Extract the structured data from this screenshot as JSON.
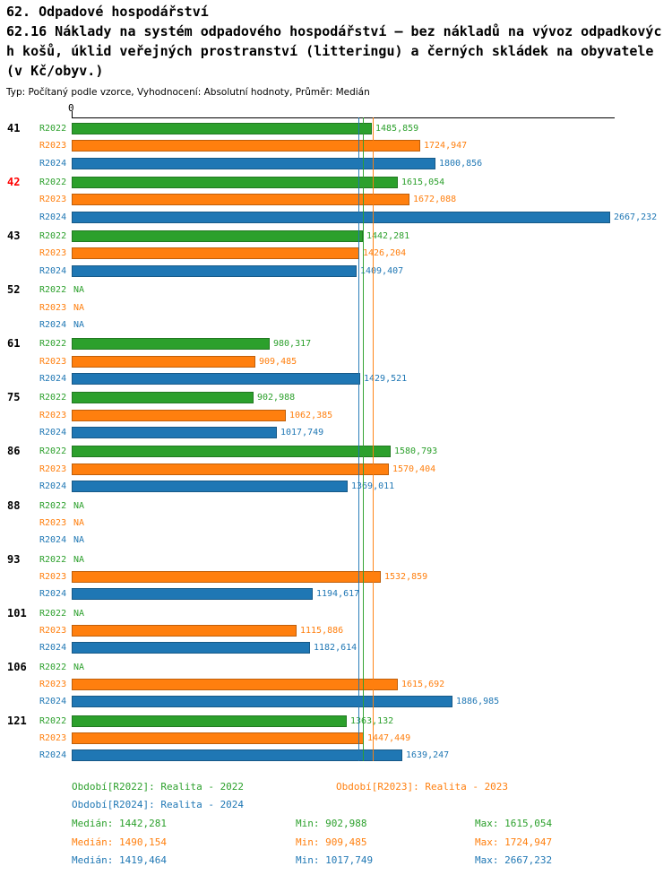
{
  "header": {
    "title_lines": [
      "62. Odpadové hospodářství",
      "62.16 Náklady na systém odpadového hospodářství – bez nákladů na vývoz odpadkovýc",
      "h košů, úklid veřejných prostranství (litteringu) a černých skládek na obyvatele",
      "(v Kč/obyv.)"
    ],
    "meta": "Typ: Počítaný podle vzorce, Vyhodnocení: Absolutní hodnoty, Průměr: Medián"
  },
  "colors": {
    "series": [
      "#2ca02c",
      "#ff7f0e",
      "#1f77b4"
    ],
    "highlight_row_id": "#ff0000",
    "default_row_id": "#000000",
    "axis": "#000000"
  },
  "chart_data": {
    "type": "bar",
    "orientation": "horizontal",
    "title": "62.16 Náklady na systém odpadového hospodářství – bez nákladů na vývoz odpadkových košů, úklid veřejných prostranství (litteringu) a černých skládek na obyvatele (v Kč/obyv.)",
    "xlabel": "",
    "ylabel": "",
    "xlim": [
      0,
      2690
    ],
    "axis_zero_label": "0",
    "grid": false,
    "legend_position": "bottom",
    "series_labels": [
      "R2022",
      "R2023",
      "R2024"
    ],
    "na_label": "NA",
    "groups": [
      {
        "id": "41",
        "highlight": false,
        "values": [
          1485.859,
          1724.947,
          1800.856
        ],
        "value_labels": [
          "1485,859",
          "1724,947",
          "1800,856"
        ]
      },
      {
        "id": "42",
        "highlight": true,
        "values": [
          1615.054,
          1672.088,
          2667.232
        ],
        "value_labels": [
          "1615,054",
          "1672,088",
          "2667,232"
        ]
      },
      {
        "id": "43",
        "highlight": false,
        "values": [
          1442.281,
          1426.204,
          1409.407
        ],
        "value_labels": [
          "1442,281",
          "1426,204",
          "1409,407"
        ]
      },
      {
        "id": "52",
        "highlight": false,
        "values": [
          null,
          null,
          null
        ],
        "value_labels": [
          "NA",
          "NA",
          "NA"
        ]
      },
      {
        "id": "61",
        "highlight": false,
        "values": [
          980.317,
          909.485,
          1429.521
        ],
        "value_labels": [
          "980,317",
          "909,485",
          "1429,521"
        ]
      },
      {
        "id": "75",
        "highlight": false,
        "values": [
          902.988,
          1062.385,
          1017.749
        ],
        "value_labels": [
          "902,988",
          "1062,385",
          "1017,749"
        ]
      },
      {
        "id": "86",
        "highlight": false,
        "values": [
          1580.793,
          1570.404,
          1369.011
        ],
        "value_labels": [
          "1580,793",
          "1570,404",
          "1369,011"
        ]
      },
      {
        "id": "88",
        "highlight": false,
        "values": [
          null,
          null,
          null
        ],
        "value_labels": [
          "NA",
          "NA",
          "NA"
        ]
      },
      {
        "id": "93",
        "highlight": false,
        "values": [
          null,
          1532.859,
          1194.617
        ],
        "value_labels": [
          "NA",
          "1532,859",
          "1194,617"
        ]
      },
      {
        "id": "101",
        "highlight": false,
        "values": [
          null,
          1115.886,
          1182.614
        ],
        "value_labels": [
          "NA",
          "1115,886",
          "1182,614"
        ]
      },
      {
        "id": "106",
        "highlight": false,
        "values": [
          null,
          1615.692,
          1886.985
        ],
        "value_labels": [
          "NA",
          "1615,692",
          "1886,985"
        ]
      },
      {
        "id": "121",
        "highlight": false,
        "values": [
          1363.132,
          1447.449,
          1639.247
        ],
        "value_labels": [
          "1363,132",
          "1447,449",
          "1639,247"
        ]
      }
    ],
    "medians": [
      1442.281,
      1490.154,
      1419.464
    ]
  },
  "legend": {
    "items": [
      {
        "label": "Období[R2022]: Realita - 2022"
      },
      {
        "label": "Období[R2023]: Realita - 2023"
      },
      {
        "label": "Období[R2024]: Realita - 2024"
      }
    ],
    "stats": [
      {
        "median": "Medián: 1442,281",
        "min": "Min: 902,988",
        "max": "Max: 1615,054"
      },
      {
        "median": "Medián: 1490,154",
        "min": "Min: 909,485",
        "max": "Max: 1724,947"
      },
      {
        "median": "Medián: 1419,464",
        "min": "Min: 1017,749",
        "max": "Max: 2667,232"
      }
    ]
  }
}
